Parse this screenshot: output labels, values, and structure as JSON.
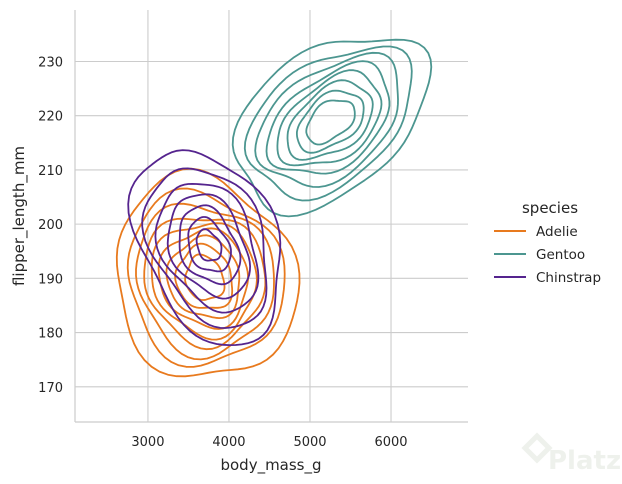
{
  "chart_data": {
    "type": "kde-contour",
    "xlabel": "body_mass_g",
    "ylabel": "flipper_length_mm",
    "xlim": [
      2100,
      6950
    ],
    "ylim": [
      163.5,
      239.5
    ],
    "xticks": [
      3000,
      4000,
      5000,
      6000
    ],
    "yticks": [
      170,
      180,
      190,
      200,
      210,
      220,
      230
    ],
    "grid": true,
    "legend": {
      "title": "species",
      "placement": "right"
    },
    "series": [
      {
        "name": "Adelie",
        "color": "#E87A1E",
        "center": [
          3700,
          190
        ],
        "levels": [
          {
            "rx": 1100,
            "ry": 19,
            "rot": 20
          },
          {
            "rx": 950,
            "ry": 16,
            "rot": 20
          },
          {
            "rx": 840,
            "ry": 14,
            "rot": 20
          },
          {
            "rx": 740,
            "ry": 12,
            "rot": 20
          },
          {
            "rx": 640,
            "ry": 10.5,
            "rot": 20
          },
          {
            "rx": 540,
            "ry": 9,
            "rot": 20
          },
          {
            "rx": 440,
            "ry": 7.5,
            "rot": 20
          },
          {
            "rx": 340,
            "ry": 6,
            "rot": 20
          },
          {
            "rx": 230,
            "ry": 4.2,
            "rot": 20
          }
        ]
      },
      {
        "name": "Gentoo",
        "color": "#4C9690",
        "center": [
          5250,
          219
        ],
        "levels": [
          {
            "rx": 1350,
            "ry": 13,
            "rot": 38
          },
          {
            "rx": 1150,
            "ry": 11,
            "rot": 38
          },
          {
            "rx": 1000,
            "ry": 9.5,
            "rot": 38
          },
          {
            "rx": 860,
            "ry": 8,
            "rot": 38
          },
          {
            "rx": 730,
            "ry": 6.8,
            "rot": 38
          },
          {
            "rx": 600,
            "ry": 5.6,
            "rot": 38
          },
          {
            "rx": 470,
            "ry": 4.4,
            "rot": 38
          },
          {
            "rx": 340,
            "ry": 3.2,
            "rot": 38
          }
        ]
      },
      {
        "name": "Chinstrap",
        "color": "#55248E",
        "center": [
          3750,
          196
        ],
        "levels": [
          {
            "rx": 820,
            "ry": 19,
            "rot": 25
          },
          {
            "rx": 680,
            "ry": 15.5,
            "rot": 25
          },
          {
            "rx": 560,
            "ry": 12.5,
            "rot": 25
          },
          {
            "rx": 450,
            "ry": 10,
            "rot": 25
          },
          {
            "rx": 340,
            "ry": 7.5,
            "rot": 25
          },
          {
            "rx": 240,
            "ry": 5.2,
            "rot": 25
          },
          {
            "rx": 140,
            "ry": 3,
            "rot": 25
          }
        ]
      }
    ]
  },
  "watermark": {
    "text": "Platzi",
    "icon": "platzi-logo-icon"
  }
}
